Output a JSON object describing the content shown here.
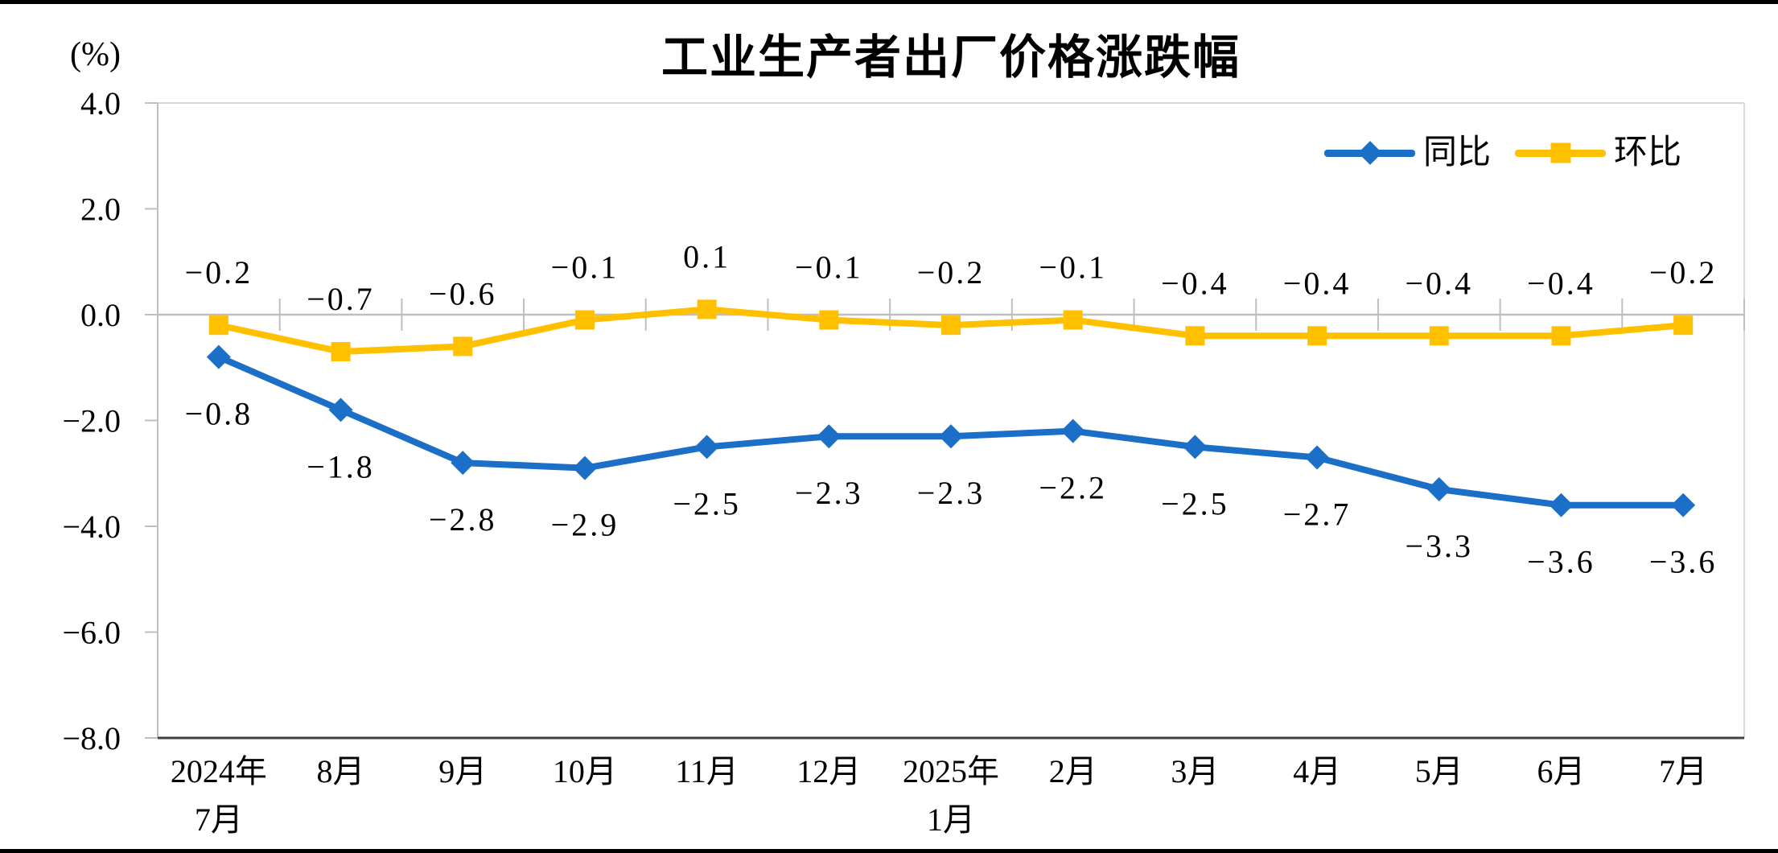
{
  "frame": {
    "border_color": "#000000",
    "background": "#FFFFFF"
  },
  "colors": {
    "yoy_blue": "#1B6FC7",
    "mom_yellow": "#FFC000",
    "zero_line": "#BFBFBF",
    "plot_border": "#D9D9D9",
    "left_axis": "#BFBFBF",
    "bottom_axis": "#404040",
    "text": "#000000"
  },
  "chart_data": {
    "type": "line",
    "title": "工业生产者出厂价格涨跌幅",
    "unit_label": "(%)",
    "legend_position": "top-right",
    "grid": false,
    "categories": [
      "2024年7月",
      "8月",
      "9月",
      "10月",
      "11月",
      "12月",
      "2025年1月",
      "2月",
      "3月",
      "4月",
      "5月",
      "6月",
      "7月"
    ],
    "category_label_lines": [
      [
        "2024年",
        "7月"
      ],
      [
        "8月"
      ],
      [
        "9月"
      ],
      [
        "10月"
      ],
      [
        "11月"
      ],
      [
        "12月"
      ],
      [
        "2025年",
        "1月"
      ],
      [
        "2月"
      ],
      [
        "3月"
      ],
      [
        "4月"
      ],
      [
        "5月"
      ],
      [
        "6月"
      ],
      [
        "7月"
      ]
    ],
    "y_axis": {
      "min": -8.0,
      "max": 4.0,
      "tick_step": 2.0,
      "tick_labels": [
        "4.0",
        "2.0",
        "0.0",
        "-2.0",
        "-4.0",
        "-6.0",
        "-8.0"
      ]
    },
    "series": [
      {
        "key": "yoy",
        "name": "同比",
        "marker": "diamond",
        "color": "#1B6FC7",
        "label_position": "below",
        "values": [
          -0.8,
          -1.8,
          -2.8,
          -2.9,
          -2.5,
          -2.3,
          -2.3,
          -2.2,
          -2.5,
          -2.7,
          -3.3,
          -3.6,
          -3.6
        ],
        "value_labels": [
          "-0.8",
          "-1.8",
          "-2.8",
          "-2.9",
          "-2.5",
          "-2.3",
          "-2.3",
          "-2.2",
          "-2.5",
          "-2.7",
          "-3.3",
          "-3.6",
          "-3.6"
        ]
      },
      {
        "key": "mom",
        "name": "环比",
        "marker": "square",
        "color": "#FFC000",
        "label_position": "above",
        "values": [
          -0.2,
          -0.7,
          -0.6,
          -0.1,
          0.1,
          -0.1,
          -0.2,
          -0.1,
          -0.4,
          -0.4,
          -0.4,
          -0.4,
          -0.2
        ],
        "value_labels": [
          "-0.2",
          "-0.7",
          "-0.6",
          "-0.1",
          "0.1",
          "-0.1",
          "-0.2",
          "-0.1",
          "-0.4",
          "-0.4",
          "-0.4",
          "-0.4",
          "-0.2"
        ]
      }
    ]
  }
}
